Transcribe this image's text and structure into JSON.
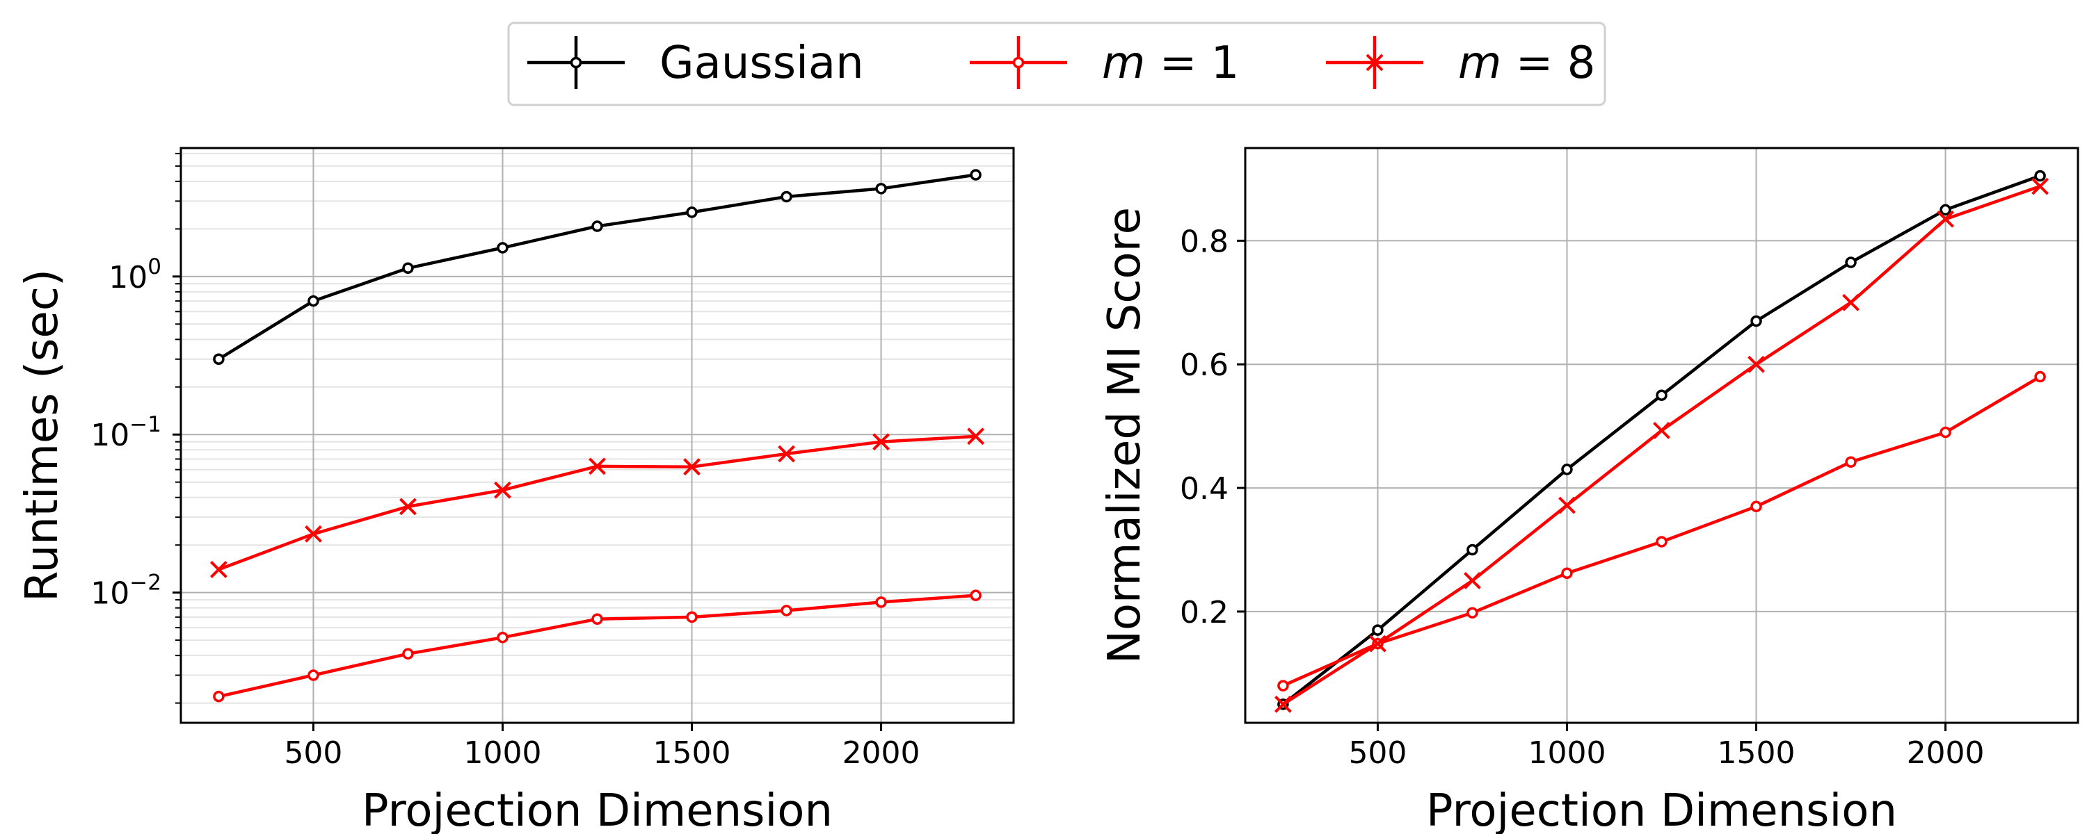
{
  "legend": {
    "items": [
      {
        "label": "Gaussian",
        "color": "#000000",
        "marker": "circle"
      },
      {
        "label": "m = 1",
        "italic_part": "m",
        "rest": " = 1",
        "color": "#ff0000",
        "marker": "circle"
      },
      {
        "label": "m = 8",
        "italic_part": "m",
        "rest": " = 8",
        "color": "#ff0000",
        "marker": "x"
      }
    ]
  },
  "chart_data": [
    {
      "type": "line",
      "xlabel": "Projection Dimension",
      "ylabel": "Runtimes (sec)",
      "yscale": "log",
      "grid": true,
      "x": [
        250,
        500,
        750,
        1000,
        1250,
        1500,
        1750,
        2000,
        2250
      ],
      "xlim": [
        150,
        2350
      ],
      "ylim": [
        0.0015,
        6.5
      ],
      "xticks": [
        500,
        1000,
        1500,
        2000
      ],
      "yticks": [
        {
          "value": 1,
          "base": "10",
          "exp": "0"
        },
        {
          "value": 0.1,
          "base": "10",
          "exp": "−1"
        },
        {
          "value": 0.01,
          "base": "10",
          "exp": "−2"
        }
      ],
      "series": [
        {
          "name": "Gaussian",
          "color": "#000000",
          "marker": "circle",
          "values": [
            0.3,
            0.7,
            1.13,
            1.52,
            2.08,
            2.55,
            3.2,
            3.6,
            4.4
          ]
        },
        {
          "name": "m = 1",
          "color": "#ff0000",
          "marker": "circle",
          "values": [
            0.0022,
            0.003,
            0.0041,
            0.0052,
            0.0068,
            0.007,
            0.0077,
            0.0087,
            0.0096
          ]
        },
        {
          "name": "m = 8",
          "color": "#ff0000",
          "marker": "x",
          "values": [
            0.014,
            0.0235,
            0.035,
            0.0445,
            0.063,
            0.0625,
            0.0755,
            0.09,
            0.0975
          ]
        }
      ]
    },
    {
      "type": "line",
      "xlabel": "Projection Dimension",
      "ylabel": "Normalized MI Score",
      "yscale": "linear",
      "grid": true,
      "x": [
        250,
        500,
        750,
        1000,
        1250,
        1500,
        1750,
        2000,
        2250
      ],
      "xlim": [
        150,
        2350
      ],
      "ylim": [
        0.02,
        0.95
      ],
      "xticks": [
        500,
        1000,
        1500,
        2000
      ],
      "yticks": [
        {
          "value": 0.2,
          "label": "0.2"
        },
        {
          "value": 0.4,
          "label": "0.4"
        },
        {
          "value": 0.6,
          "label": "0.6"
        },
        {
          "value": 0.8,
          "label": "0.8"
        }
      ],
      "series": [
        {
          "name": "Gaussian",
          "color": "#000000",
          "marker": "circle",
          "values": [
            0.05,
            0.17,
            0.3,
            0.43,
            0.55,
            0.67,
            0.765,
            0.85,
            0.905
          ]
        },
        {
          "name": "m = 1",
          "color": "#ff0000",
          "marker": "circle",
          "values": [
            0.08,
            0.148,
            0.198,
            0.262,
            0.313,
            0.37,
            0.442,
            0.49,
            0.58
          ]
        },
        {
          "name": "m = 8",
          "color": "#ff0000",
          "marker": "x",
          "values": [
            0.05,
            0.148,
            0.25,
            0.372,
            0.493,
            0.6,
            0.7,
            0.835,
            0.888
          ]
        }
      ]
    }
  ]
}
